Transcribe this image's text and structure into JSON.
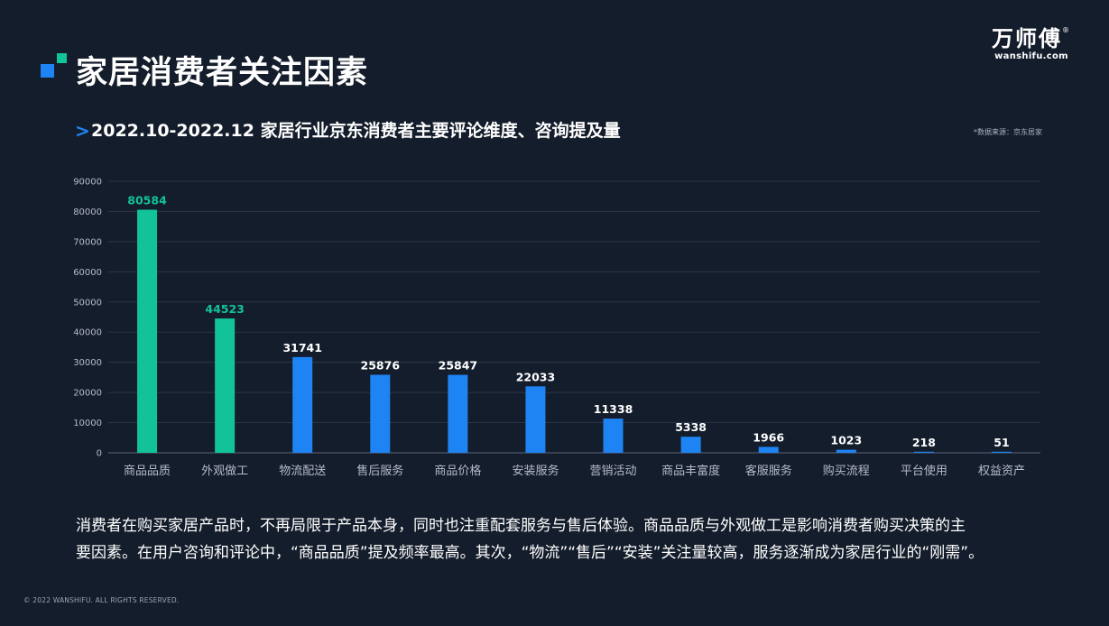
{
  "page_title": "家居消费者关注因素",
  "logo": {
    "cn": "万师傅",
    "reg": "®",
    "en": "wanshifu.com"
  },
  "subtitle_arrow": ">",
  "subtitle": "2022.10-2022.12 家居行业京东消费者主要评论维度、咨询提及量",
  "source": "*数据来源：京东居家",
  "chart_data": {
    "type": "bar",
    "categories": [
      "商品品质",
      "外观做工",
      "物流配送",
      "售后服务",
      "商品价格",
      "安装服务",
      "营销活动",
      "商品丰富度",
      "客服服务",
      "购买流程",
      "平台使用",
      "权益资产"
    ],
    "values": [
      80584,
      44523,
      31741,
      25876,
      25847,
      22033,
      11338,
      5338,
      1966,
      1023,
      218,
      51
    ],
    "ylim": [
      0,
      90000
    ],
    "yticks": [
      0,
      10000,
      20000,
      30000,
      40000,
      50000,
      60000,
      70000,
      80000,
      90000
    ],
    "grid": true,
    "title": "",
    "xlabel": "",
    "ylabel": "",
    "colors": {
      "highlight": "#12c39a",
      "default": "#1f84f3",
      "highlight_label": "#12c39a",
      "default_label": "#ffffff",
      "grid": "#2a3548",
      "axis_text": "#b4bcc8"
    },
    "highlighted_categories": [
      "商品品质",
      "外观做工"
    ]
  },
  "description": {
    "line1": "消费者在购买家居产品时，不再局限于产品本身，同时也注重配套服务与售后体验。商品品质与外观做工是影响消费者购买决策的主",
    "line2": "要因素。在用户咨询和评论中，“商品品质”提及频率最高。其次，“物流”“售后”“安装”关注量较高，服务逐渐成为家居行业的“刚需”。"
  },
  "copyright": "© 2022 WANSHIFU. ALL RIGHTS RESERVED."
}
